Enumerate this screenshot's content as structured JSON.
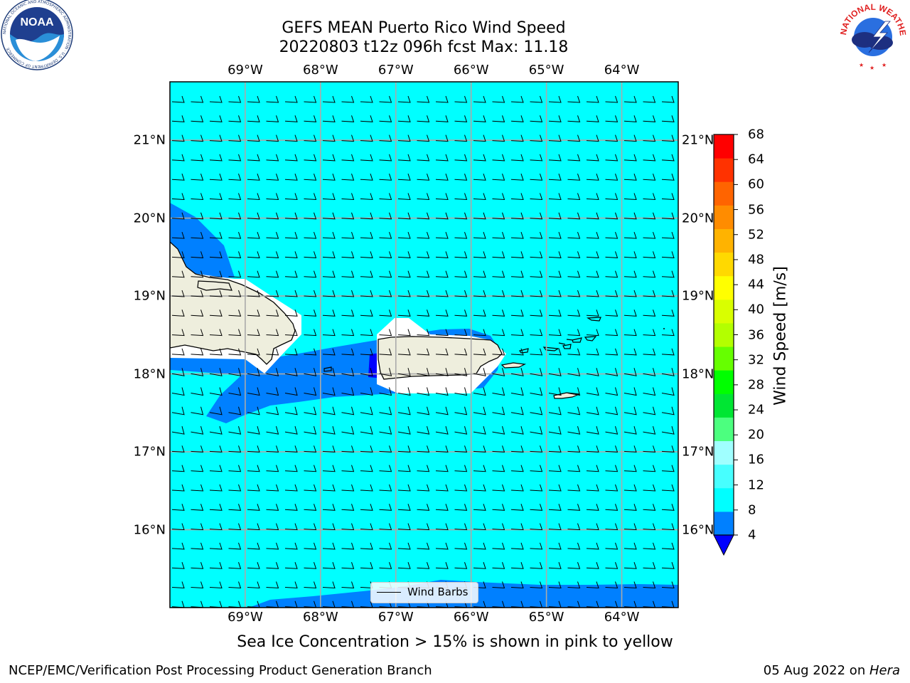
{
  "header": {
    "title_line1": "GEFS MEAN Puerto Rico Wind Speed",
    "title_line2": "20220803 t12z 096h fcst   Max: 11.18"
  },
  "logos": {
    "left": {
      "name": "NOAA",
      "ring_text": "NATIONAL OCEANIC AND ATMOSPHERIC ADMINISTRATION · U.S. DEPARTMENT OF COMMERCE"
    },
    "right": {
      "name": "NATIONAL WEATHER SERVICE"
    }
  },
  "map": {
    "lon_labels": [
      "69°W",
      "68°W",
      "67°W",
      "66°W",
      "65°W",
      "64°W"
    ],
    "lat_labels": [
      "21°N",
      "20°N",
      "19°N",
      "18°N",
      "17°N",
      "16°N"
    ],
    "lon_range": [
      -70.0,
      -63.25
    ],
    "lat_range": [
      15.0,
      21.75
    ],
    "grid": true,
    "barb_direction": "east",
    "barb_speed_class": "10 kt (full barb)",
    "colors": {
      "ocean_8_12": "#00ffff",
      "ocean_4_8": "#0080ff",
      "calm_lt_4": "#0000ff",
      "land": "#eeeedd",
      "sheltered": "#ffffff"
    }
  },
  "legend": {
    "label": "Wind Barbs"
  },
  "colorbar": {
    "label": "Wind Speed [m/s]",
    "ticks": [
      "4",
      "8",
      "12",
      "16",
      "20",
      "24",
      "28",
      "32",
      "36",
      "40",
      "44",
      "48",
      "52",
      "56",
      "60",
      "64",
      "68"
    ],
    "colors": [
      "#0080ff",
      "#00ffff",
      "#47ffff",
      "#a0ffff",
      "#4cff7f",
      "#00e633",
      "#00ff00",
      "#66ff00",
      "#b3ff00",
      "#d9ff00",
      "#ffff00",
      "#ffd900",
      "#ffb300",
      "#ff8c00",
      "#ff6400",
      "#ff3200",
      "#ff0000"
    ],
    "under_color": "#0000ff"
  },
  "footer": {
    "caption": "Sea Ice Concentration > 15% is shown in pink to yellow",
    "left": "NCEP/EMC/Verification Post Processing Product Generation Branch",
    "date": "05 Aug 2022 on ",
    "machine": "Hera"
  }
}
